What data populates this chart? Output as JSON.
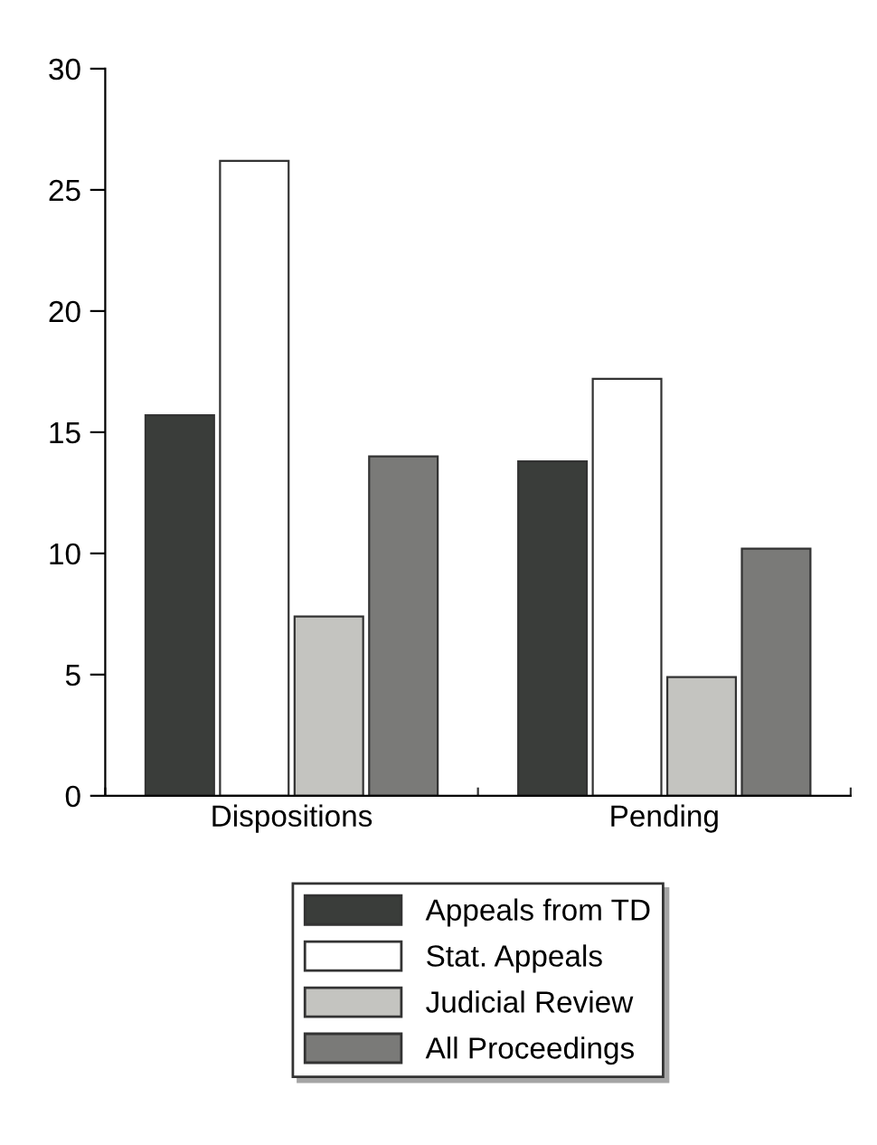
{
  "chart_data": {
    "type": "bar",
    "categories": [
      "Dispositions",
      "Pending"
    ],
    "series": [
      {
        "name": "Appeals from TD",
        "color": "#3a3d3a",
        "values": [
          15.7,
          13.8
        ]
      },
      {
        "name": "Stat. Appeals",
        "color": "#ffffff",
        "values": [
          26.2,
          17.2
        ]
      },
      {
        "name": "Judicial Review",
        "color": "#c4c4c0",
        "values": [
          7.4,
          4.9
        ]
      },
      {
        "name": "All Proceedings",
        "color": "#7a7a78",
        "values": [
          14.0,
          10.2
        ]
      }
    ],
    "ylim": [
      0,
      30
    ],
    "yticks": [
      0,
      5,
      10,
      15,
      20,
      25,
      30
    ],
    "grid": false,
    "legend": "bottom"
  }
}
